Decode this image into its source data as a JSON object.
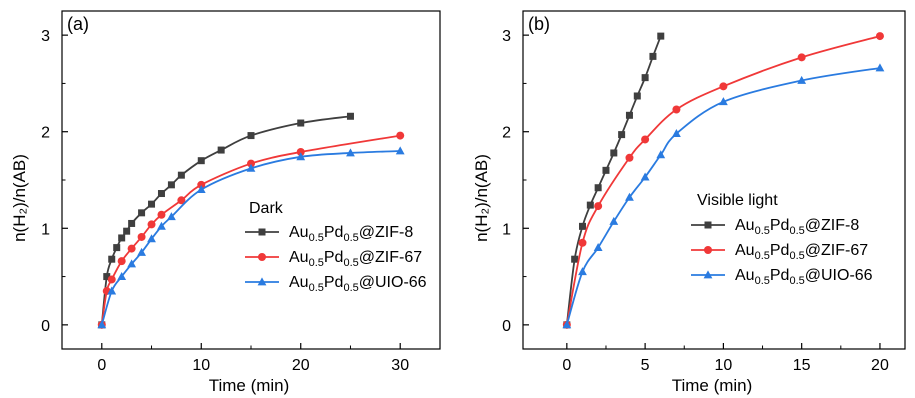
{
  "chart_data": [
    {
      "type": "line",
      "panel_label": "(a)",
      "xlabel": "Time (min)",
      "ylabel": "n(H₂)/n(AB)",
      "xlim": [
        -4,
        34
      ],
      "ylim": [
        -0.25,
        3.25
      ],
      "xticks": [
        0,
        10,
        20,
        30
      ],
      "yticks": [
        0,
        1,
        2,
        3
      ],
      "grid": false,
      "legend_title": "Dark",
      "legend_position": "lower-right",
      "series": [
        {
          "name": "Au0.5Pd0.5@ZIF-8",
          "name_parts": {
            "a": "Au",
            "a_sub": "0.5",
            "b": "Pd",
            "b_sub": "0.5",
            "rest": "@ZIF-8"
          },
          "color": "#3f3f3f",
          "marker": "square",
          "x": [
            0,
            0.5,
            1,
            1.5,
            2,
            2.5,
            3,
            4,
            5,
            6,
            7,
            8,
            10,
            12,
            15,
            20,
            25
          ],
          "y": [
            0,
            0.5,
            0.68,
            0.8,
            0.9,
            0.97,
            1.05,
            1.16,
            1.25,
            1.36,
            1.45,
            1.55,
            1.7,
            1.81,
            1.96,
            2.09,
            2.16
          ]
        },
        {
          "name": "Au0.5Pd0.5@ZIF-67",
          "name_parts": {
            "a": "Au",
            "a_sub": "0.5",
            "b": "Pd",
            "b_sub": "0.5",
            "rest": "@ZIF-67"
          },
          "color": "#f03838",
          "marker": "circle",
          "x": [
            0,
            0.5,
            1,
            2,
            3,
            4,
            5,
            6,
            8,
            10,
            15,
            20,
            30
          ],
          "y": [
            0,
            0.35,
            0.47,
            0.66,
            0.79,
            0.91,
            1.04,
            1.14,
            1.29,
            1.45,
            1.67,
            1.79,
            1.96
          ]
        },
        {
          "name": "Au0.5Pd0.5@UIO-66",
          "name_parts": {
            "a": "Au",
            "a_sub": "0.5",
            "b": "Pd",
            "b_sub": "0.5",
            "rest": "@UIO-66"
          },
          "color": "#2a7be0",
          "marker": "triangle",
          "x": [
            0,
            1,
            2,
            3,
            4,
            5,
            6,
            7,
            10,
            15,
            20,
            25,
            30
          ],
          "y": [
            0,
            0.35,
            0.5,
            0.63,
            0.75,
            0.89,
            1.02,
            1.12,
            1.4,
            1.62,
            1.74,
            1.78,
            1.8
          ]
        }
      ]
    },
    {
      "type": "line",
      "panel_label": "(b)",
      "xlabel": "Time (min)",
      "ylabel": "n(H₂)/n(AB)",
      "xlim": [
        -2.8,
        21.6
      ],
      "ylim": [
        -0.25,
        3.25
      ],
      "xticks": [
        0,
        5,
        10,
        15,
        20
      ],
      "yticks": [
        0,
        1,
        2,
        3
      ],
      "grid": false,
      "legend_title": "Visible light",
      "legend_position": "lower-right",
      "series": [
        {
          "name": "Au0.5Pd0.5@ZIF-8",
          "name_parts": {
            "a": "Au",
            "a_sub": "0.5",
            "b": "Pd",
            "b_sub": "0.5",
            "rest": "@ZIF-8"
          },
          "color": "#3f3f3f",
          "marker": "square",
          "x": [
            0,
            0.5,
            1,
            1.5,
            2,
            2.5,
            3,
            3.5,
            4,
            4.5,
            5,
            5.5,
            6
          ],
          "y": [
            0,
            0.68,
            1.02,
            1.24,
            1.42,
            1.6,
            1.78,
            1.97,
            2.17,
            2.37,
            2.56,
            2.78,
            2.99
          ]
        },
        {
          "name": "Au0.5Pd0.5@ZIF-67",
          "name_parts": {
            "a": "Au",
            "a_sub": "0.5",
            "b": "Pd",
            "b_sub": "0.5",
            "rest": "@ZIF-67"
          },
          "color": "#f03838",
          "marker": "circle",
          "x": [
            0,
            1,
            2,
            4,
            5,
            7,
            10,
            15,
            20
          ],
          "y": [
            0,
            0.85,
            1.23,
            1.73,
            1.92,
            2.23,
            2.47,
            2.77,
            2.99
          ]
        },
        {
          "name": "Au0.5Pd0.5@UIO-66",
          "name_parts": {
            "a": "Au",
            "a_sub": "0.5",
            "b": "Pd",
            "b_sub": "0.5",
            "rest": "@UIO-66"
          },
          "color": "#2a7be0",
          "marker": "triangle",
          "x": [
            0,
            1,
            2,
            3,
            4,
            5,
            6,
            7,
            10,
            15,
            20
          ],
          "y": [
            0,
            0.55,
            0.8,
            1.07,
            1.32,
            1.53,
            1.76,
            1.98,
            2.31,
            2.53,
            2.66
          ]
        }
      ]
    }
  ]
}
